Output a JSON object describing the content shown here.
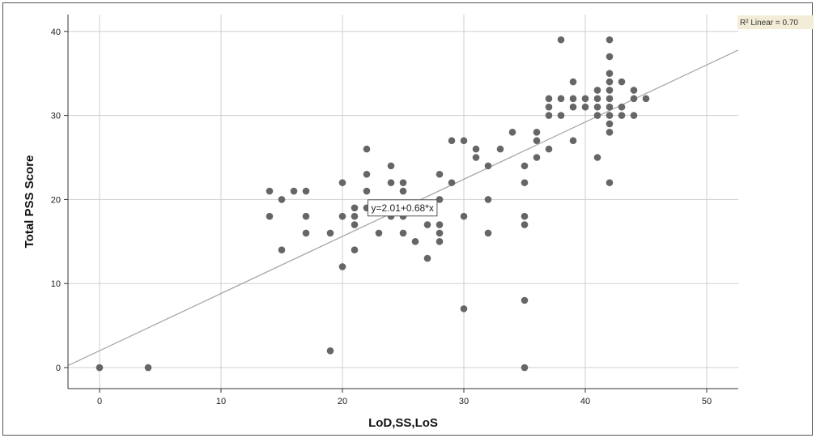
{
  "chart_data": {
    "type": "scatter",
    "title": "",
    "xlabel": "LoD,SS,LoS",
    "ylabel": "Total PSS Score",
    "xlim": [
      -2.6,
      52.6
    ],
    "ylim": [
      -2.5,
      42.0
    ],
    "x_ticks": [
      0,
      10,
      20,
      30,
      40,
      50
    ],
    "y_ticks": [
      0,
      10,
      20,
      30,
      40
    ],
    "grid": true,
    "marker_color": "#666666",
    "fit_line": {
      "label": "y=2.01+0.68*x",
      "intercept": 2.01,
      "slope": 0.68,
      "color": "#a8a8a8",
      "r2_label": "R² Linear = 0.70",
      "r2_background": "#f3ecd7"
    },
    "points": [
      {
        "x": 0,
        "y": 0
      },
      {
        "x": 4,
        "y": 0
      },
      {
        "x": 14,
        "y": 21
      },
      {
        "x": 14,
        "y": 18
      },
      {
        "x": 15,
        "y": 20
      },
      {
        "x": 15,
        "y": 14
      },
      {
        "x": 16,
        "y": 21
      },
      {
        "x": 17,
        "y": 21
      },
      {
        "x": 17,
        "y": 18
      },
      {
        "x": 17,
        "y": 16
      },
      {
        "x": 19,
        "y": 16
      },
      {
        "x": 19,
        "y": 2
      },
      {
        "x": 20,
        "y": 22
      },
      {
        "x": 20,
        "y": 18
      },
      {
        "x": 20,
        "y": 12
      },
      {
        "x": 21,
        "y": 19
      },
      {
        "x": 21,
        "y": 18
      },
      {
        "x": 21,
        "y": 17
      },
      {
        "x": 21,
        "y": 14
      },
      {
        "x": 22,
        "y": 26
      },
      {
        "x": 22,
        "y": 23
      },
      {
        "x": 22,
        "y": 21
      },
      {
        "x": 22,
        "y": 19
      },
      {
        "x": 23,
        "y": 16
      },
      {
        "x": 24,
        "y": 24
      },
      {
        "x": 24,
        "y": 22
      },
      {
        "x": 24,
        "y": 18
      },
      {
        "x": 25,
        "y": 22
      },
      {
        "x": 25,
        "y": 21
      },
      {
        "x": 25,
        "y": 18
      },
      {
        "x": 25,
        "y": 16
      },
      {
        "x": 26,
        "y": 15
      },
      {
        "x": 27,
        "y": 17
      },
      {
        "x": 27,
        "y": 13
      },
      {
        "x": 28,
        "y": 23
      },
      {
        "x": 28,
        "y": 20
      },
      {
        "x": 28,
        "y": 17
      },
      {
        "x": 28,
        "y": 16
      },
      {
        "x": 28,
        "y": 15
      },
      {
        "x": 29,
        "y": 27
      },
      {
        "x": 29,
        "y": 22
      },
      {
        "x": 30,
        "y": 27
      },
      {
        "x": 30,
        "y": 18
      },
      {
        "x": 30,
        "y": 7
      },
      {
        "x": 31,
        "y": 26
      },
      {
        "x": 31,
        "y": 25
      },
      {
        "x": 32,
        "y": 24
      },
      {
        "x": 32,
        "y": 20
      },
      {
        "x": 32,
        "y": 16
      },
      {
        "x": 33,
        "y": 26
      },
      {
        "x": 34,
        "y": 28
      },
      {
        "x": 35,
        "y": 24
      },
      {
        "x": 35,
        "y": 22
      },
      {
        "x": 35,
        "y": 18
      },
      {
        "x": 35,
        "y": 17
      },
      {
        "x": 35,
        "y": 8
      },
      {
        "x": 35,
        "y": 0
      },
      {
        "x": 36,
        "y": 28
      },
      {
        "x": 36,
        "y": 27
      },
      {
        "x": 36,
        "y": 25
      },
      {
        "x": 37,
        "y": 32
      },
      {
        "x": 37,
        "y": 31
      },
      {
        "x": 37,
        "y": 30
      },
      {
        "x": 37,
        "y": 26
      },
      {
        "x": 38,
        "y": 39
      },
      {
        "x": 38,
        "y": 32
      },
      {
        "x": 38,
        "y": 30
      },
      {
        "x": 39,
        "y": 34
      },
      {
        "x": 39,
        "y": 32
      },
      {
        "x": 39,
        "y": 31
      },
      {
        "x": 39,
        "y": 27
      },
      {
        "x": 40,
        "y": 32
      },
      {
        "x": 40,
        "y": 31
      },
      {
        "x": 41,
        "y": 33
      },
      {
        "x": 41,
        "y": 32
      },
      {
        "x": 41,
        "y": 31
      },
      {
        "x": 41,
        "y": 30
      },
      {
        "x": 41,
        "y": 25
      },
      {
        "x": 42,
        "y": 39
      },
      {
        "x": 42,
        "y": 37
      },
      {
        "x": 42,
        "y": 35
      },
      {
        "x": 42,
        "y": 34
      },
      {
        "x": 42,
        "y": 33
      },
      {
        "x": 42,
        "y": 32
      },
      {
        "x": 42,
        "y": 31
      },
      {
        "x": 42,
        "y": 30
      },
      {
        "x": 42,
        "y": 29
      },
      {
        "x": 42,
        "y": 28
      },
      {
        "x": 42,
        "y": 22
      },
      {
        "x": 43,
        "y": 34
      },
      {
        "x": 43,
        "y": 31
      },
      {
        "x": 43,
        "y": 30
      },
      {
        "x": 44,
        "y": 33
      },
      {
        "x": 44,
        "y": 32
      },
      {
        "x": 44,
        "y": 30
      },
      {
        "x": 45,
        "y": 32
      }
    ]
  }
}
